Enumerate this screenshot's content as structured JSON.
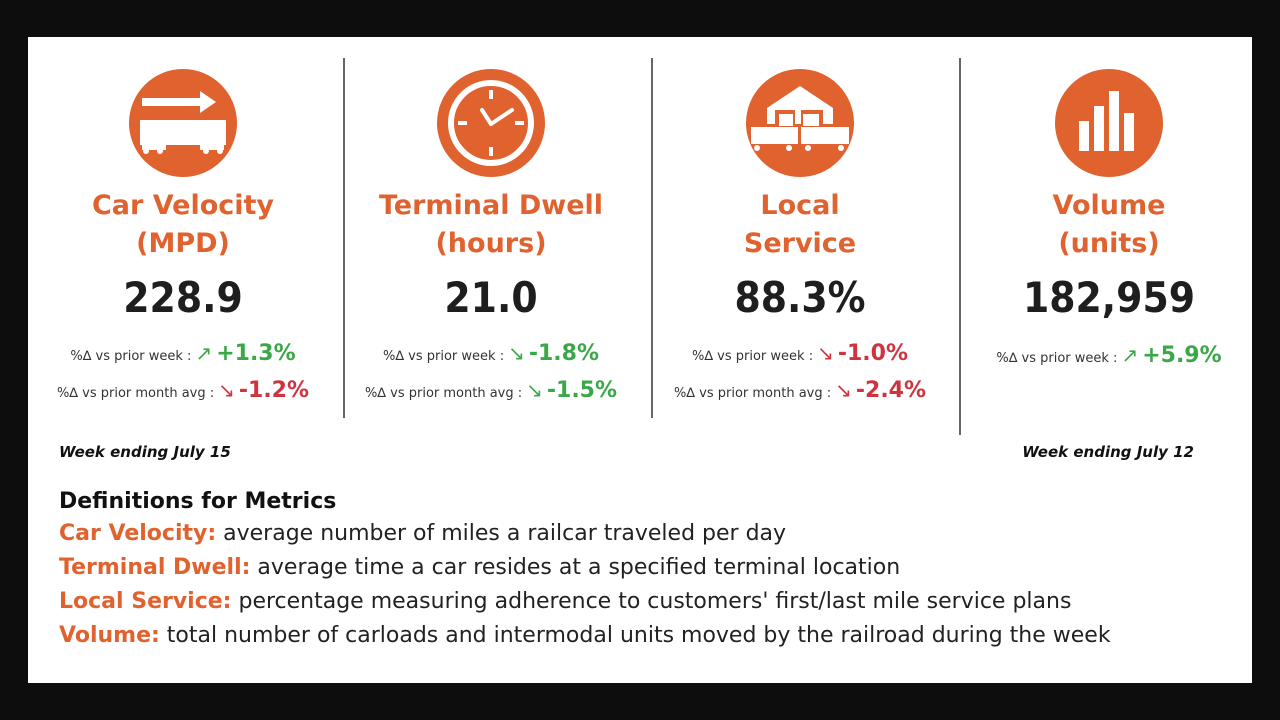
{
  "accent": "#e0622f",
  "positive_color": "#3aa848",
  "negative_color": "#d0323f",
  "metrics": [
    {
      "icon": "railcar-arrow-icon",
      "title1": "Car Velocity",
      "title2": "(MPD)",
      "value": "228.9",
      "deltas": [
        {
          "label": "%∆ vs prior week :",
          "arrow": "↗",
          "pct": "+1.3%",
          "tone": "green"
        },
        {
          "label": "%∆ vs prior month avg :",
          "arrow": "↘",
          "pct": "-1.2%",
          "tone": "red"
        }
      ]
    },
    {
      "icon": "clock-icon",
      "title1": "Terminal Dwell",
      "title2": "(hours)",
      "value": "21.0",
      "deltas": [
        {
          "label": "%∆ vs prior week :",
          "arrow": "↘",
          "pct": "-1.8%",
          "tone": "green"
        },
        {
          "label": "%∆ vs prior month avg :",
          "arrow": "↘",
          "pct": "-1.5%",
          "tone": "green"
        }
      ]
    },
    {
      "icon": "warehouse-railcars-icon",
      "title1": "Local",
      "title2": "Service",
      "value": "88.3%",
      "deltas": [
        {
          "label": "%∆ vs prior week :",
          "arrow": "↘",
          "pct": "-1.0%",
          "tone": "red"
        },
        {
          "label": "%∆ vs prior month avg :",
          "arrow": "↘",
          "pct": "-2.4%",
          "tone": "red"
        }
      ]
    },
    {
      "icon": "bar-chart-icon",
      "title1": "Volume",
      "title2": "(units)",
      "value": "182,959",
      "deltas": [
        {
          "label": "%∆ vs prior week :",
          "arrow": "↗",
          "pct": "+5.9%",
          "tone": "green"
        }
      ]
    }
  ],
  "week_left": "Week ending July 15",
  "week_right": "Week ending July 12",
  "definitions": {
    "title": "Definitions for Metrics",
    "items": [
      {
        "term": "Car Velocity:",
        "text": " average number of miles a railcar traveled per day"
      },
      {
        "term": "Terminal Dwell:",
        "text": " average time a car resides at a specified terminal location"
      },
      {
        "term": "Local Service:",
        "text": " percentage measuring adherence to customers' first/last mile service plans"
      },
      {
        "term": "Volume:",
        "text": " total number of carloads and intermodal units moved by the railroad during the week"
      }
    ]
  }
}
